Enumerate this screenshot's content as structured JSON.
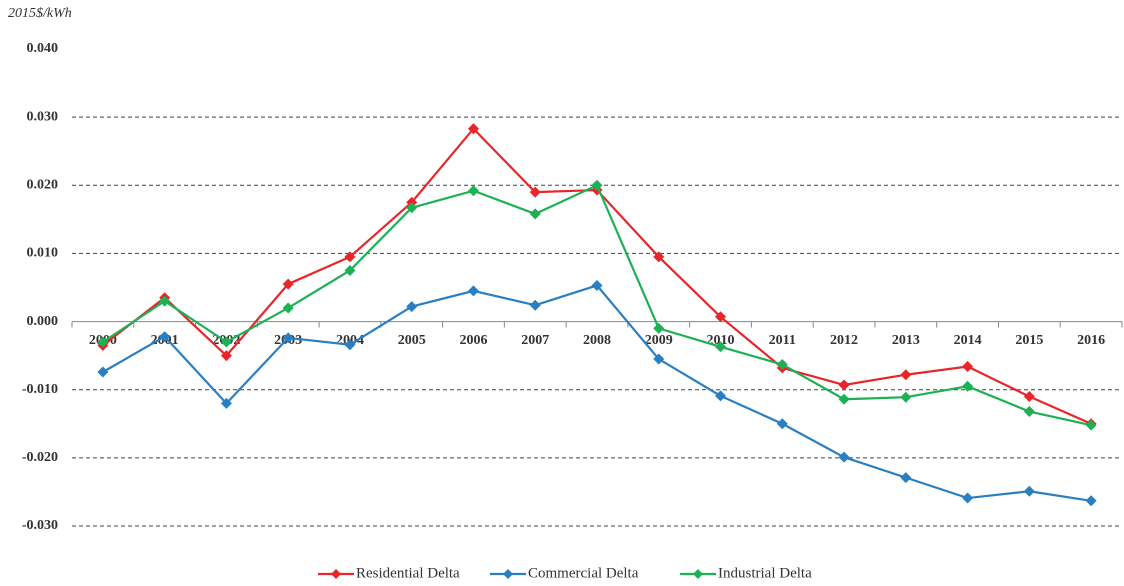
{
  "chart_data": {
    "type": "line",
    "y_axis_label": "2015$/kWh",
    "categories": [
      "2000",
      "2001",
      "2002",
      "2003",
      "2004",
      "2005",
      "2006",
      "2007",
      "2008",
      "2009",
      "2010",
      "2011",
      "2012",
      "2013",
      "2014",
      "2015",
      "2016"
    ],
    "series": [
      {
        "name": "Residential Delta",
        "color": "#e8262a",
        "values": [
          -0.0035,
          0.0035,
          -0.005,
          0.0055,
          0.0095,
          0.0175,
          0.0283,
          0.019,
          0.0193,
          0.0095,
          0.0007,
          -0.0068,
          -0.0093,
          -0.0078,
          -0.0066,
          -0.011,
          -0.015
        ]
      },
      {
        "name": "Commercial Delta",
        "color": "#2a7fc1",
        "values": [
          -0.0074,
          -0.0022,
          -0.012,
          -0.0024,
          -0.0034,
          0.0022,
          0.0045,
          0.0024,
          0.0053,
          -0.0055,
          -0.0109,
          -0.015,
          -0.0199,
          -0.0229,
          -0.0259,
          -0.0249,
          -0.0263
        ]
      },
      {
        "name": "Industrial Delta",
        "color": "#1db055",
        "values": [
          -0.003,
          0.003,
          -0.003,
          0.002,
          0.0075,
          0.0167,
          0.0192,
          0.0158,
          0.02,
          -0.001,
          -0.0037,
          -0.0063,
          -0.0114,
          -0.0111,
          -0.0095,
          -0.0132,
          -0.0152
        ]
      }
    ],
    "ylim": [
      -0.03,
      0.04
    ],
    "yticks": [
      {
        "value": 0.04,
        "label": "0.040"
      },
      {
        "value": 0.03,
        "label": "0.030"
      },
      {
        "value": 0.02,
        "label": "0.020"
      },
      {
        "value": 0.01,
        "label": "0.010"
      },
      {
        "value": 0,
        "label": "0.000"
      },
      {
        "value": -0.01,
        "label": "-0.010"
      },
      {
        "value": -0.02,
        "label": "-0.020"
      },
      {
        "value": -0.03,
        "label": "-0.030"
      }
    ],
    "grid": true,
    "legend": "bottom"
  }
}
